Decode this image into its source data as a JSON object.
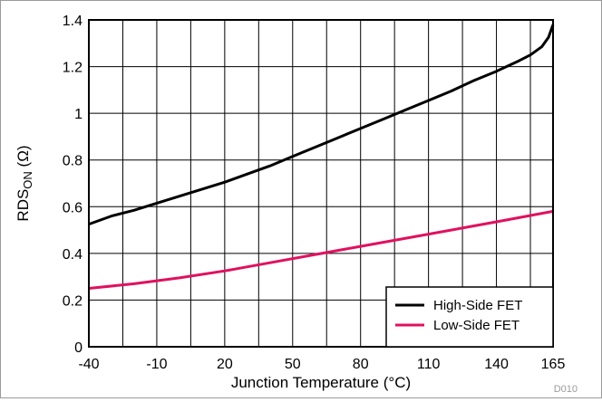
{
  "figure_id": "D010",
  "colors": {
    "high_side": "#000000",
    "low_side": "#e0115f",
    "grid": "#000000",
    "frame_border": "#9a9a9a"
  },
  "chart_data": {
    "type": "line",
    "title": "",
    "xlabel": "Junction Temperature (°C)",
    "ylabel": {
      "base": "RDS",
      "subscript": "ON",
      "unit": " (Ω)"
    },
    "xlim": [
      -40,
      165
    ],
    "ylim": [
      0,
      1.4
    ],
    "xticks": [
      -40,
      -10,
      20,
      50,
      80,
      110,
      140,
      165
    ],
    "xtick_labels": [
      "-40",
      "-10",
      "20",
      "50",
      "80",
      "110",
      "140",
      "165"
    ],
    "yticks": [
      0,
      0.2,
      0.4,
      0.6,
      0.8,
      1,
      1.2,
      1.4
    ],
    "ytick_labels": [
      "0",
      "0.2",
      "0.4",
      "0.6",
      "0.8",
      "1",
      "1.2",
      "1.4"
    ],
    "vertical_gridlines": [
      -40,
      -25,
      -10,
      5,
      20,
      35,
      50,
      65,
      80,
      95,
      110,
      125,
      140,
      155,
      165
    ],
    "horizontal_gridlines": [
      0,
      0.2,
      0.4,
      0.6,
      0.8,
      1,
      1.2,
      1.4
    ],
    "grid": true,
    "legend_position": "bottom-right",
    "series": [
      {
        "name": "High-Side FET",
        "color": "#000000",
        "x": [
          -40,
          -30,
          -20,
          -10,
          0,
          10,
          20,
          30,
          40,
          50,
          60,
          70,
          80,
          90,
          100,
          110,
          120,
          130,
          140,
          150,
          155,
          160,
          163,
          165
        ],
        "y": [
          0.525,
          0.56,
          0.585,
          0.615,
          0.645,
          0.675,
          0.705,
          0.74,
          0.775,
          0.815,
          0.855,
          0.895,
          0.935,
          0.975,
          1.015,
          1.055,
          1.095,
          1.14,
          1.18,
          1.225,
          1.25,
          1.285,
          1.325,
          1.38
        ]
      },
      {
        "name": "Low-Side FET",
        "color": "#e0115f",
        "x": [
          -40,
          -20,
          0,
          20,
          40,
          60,
          80,
          100,
          120,
          140,
          165
        ],
        "y": [
          0.25,
          0.27,
          0.295,
          0.325,
          0.36,
          0.395,
          0.43,
          0.465,
          0.5,
          0.535,
          0.58
        ]
      }
    ]
  }
}
